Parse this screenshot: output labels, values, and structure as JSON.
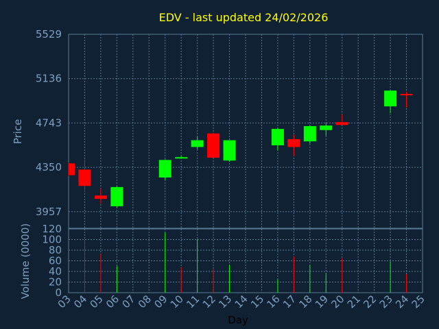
{
  "title": "EDV - last updated 24/02/2026",
  "colors": {
    "background": "#0f2133",
    "up": "#00ff00",
    "down": "#ff0000",
    "title": "#ffff00",
    "text": "#7f9fbf",
    "grid": "#5a7a95"
  },
  "chart_data": [
    {
      "type": "candlestick",
      "ylabel": "Price",
      "ylim": [
        3810,
        5529
      ],
      "yticks": [
        "3957",
        "4350",
        "4743",
        "5136",
        "5529"
      ],
      "grid": true,
      "x_categories": [
        "03",
        "04",
        "05",
        "06",
        "07",
        "08",
        "09",
        "10",
        "11",
        "12",
        "13",
        "14",
        "15",
        "16",
        "17",
        "18",
        "19",
        "20",
        "21",
        "22",
        "23",
        "24",
        "25"
      ],
      "candles": [
        {
          "day": "03",
          "open": 4385,
          "high": 4395,
          "low": 4270,
          "close": 4280
        },
        {
          "day": "04",
          "open": 4330,
          "high": 4420,
          "low": 4130,
          "close": 4185
        },
        {
          "day": "05",
          "open": 4100,
          "high": 4165,
          "low": 4025,
          "close": 4070
        },
        {
          "day": "06",
          "open": 4005,
          "high": 4180,
          "low": 3995,
          "close": 4175
        },
        {
          "day": "09",
          "open": 4260,
          "high": 4420,
          "low": 4240,
          "close": 4415
        },
        {
          "day": "10",
          "open": 4440,
          "high": 4450,
          "low": 4430,
          "close": 4440
        },
        {
          "day": "11",
          "open": 4530,
          "high": 4620,
          "low": 4510,
          "close": 4590
        },
        {
          "day": "12",
          "open": 4650,
          "high": 4655,
          "low": 4435,
          "close": 4435
        },
        {
          "day": "13",
          "open": 4410,
          "high": 4590,
          "low": 4400,
          "close": 4590
        },
        {
          "day": "16",
          "open": 4545,
          "high": 4700,
          "low": 4500,
          "close": 4690
        },
        {
          "day": "17",
          "open": 4600,
          "high": 4640,
          "low": 4450,
          "close": 4530
        },
        {
          "day": "18",
          "open": 4580,
          "high": 4720,
          "low": 4560,
          "close": 4715
        },
        {
          "day": "19",
          "open": 4680,
          "high": 4740,
          "low": 4630,
          "close": 4720
        },
        {
          "day": "20",
          "open": 4750,
          "high": 4820,
          "low": 4730,
          "close": 4725
        },
        {
          "day": "23",
          "open": 4890,
          "high": 5030,
          "low": 4830,
          "close": 5030
        },
        {
          "day": "24",
          "open": 5000,
          "high": 5020,
          "low": 4880,
          "close": 4995
        }
      ]
    },
    {
      "type": "bar",
      "ylabel": "Volume (0000)",
      "xlabel": "Day",
      "ylim": [
        0,
        120
      ],
      "yticks": [
        "0",
        "20",
        "40",
        "60",
        "80",
        "100",
        "120"
      ],
      "grid": true,
      "categories": [
        "03",
        "04",
        "05",
        "06",
        "07",
        "08",
        "09",
        "10",
        "11",
        "12",
        "13",
        "14",
        "15",
        "16",
        "17",
        "18",
        "19",
        "20",
        "21",
        "22",
        "23",
        "24",
        "25"
      ],
      "volumes": [
        {
          "day": "04",
          "value": 100,
          "dir": "down"
        },
        {
          "day": "05",
          "value": 73,
          "dir": "down"
        },
        {
          "day": "06",
          "value": 50,
          "dir": "up"
        },
        {
          "day": "09",
          "value": 113,
          "dir": "up"
        },
        {
          "day": "10",
          "value": 48,
          "dir": "down"
        },
        {
          "day": "11",
          "value": 101,
          "dir": "up"
        },
        {
          "day": "12",
          "value": 44,
          "dir": "down"
        },
        {
          "day": "13",
          "value": 52,
          "dir": "up"
        },
        {
          "day": "16",
          "value": 25,
          "dir": "up"
        },
        {
          "day": "17",
          "value": 68,
          "dir": "down"
        },
        {
          "day": "18",
          "value": 52,
          "dir": "up"
        },
        {
          "day": "19",
          "value": 37,
          "dir": "up"
        },
        {
          "day": "20",
          "value": 65,
          "dir": "down"
        },
        {
          "day": "23",
          "value": 59,
          "dir": "up"
        },
        {
          "day": "24",
          "value": 35,
          "dir": "down"
        }
      ]
    }
  ]
}
